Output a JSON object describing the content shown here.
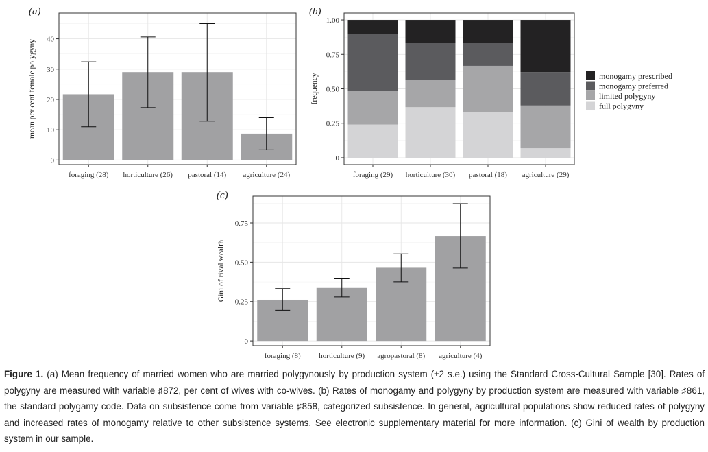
{
  "caption": {
    "label": "Figure 1.",
    "text": "(a) Mean frequency of married women who are married polygynously by production system (±2 s.e.) using the Standard Cross-Cultural Sample [30]. Rates of polygyny are measured with variable ♯872, per cent of wives with co-wives. (b) Rates of monogamy and polygyny by production system are measured with variable ♯861, the standard polygamy code. Data on subsistence come from variable ♯858, categorized subsistence. In general, agricultural populations show reduced rates of polygyny and increased rates of monogamy relative to other subsistence systems. See electronic supplementary material for more information. (c) Gini of wealth by production system in our sample."
  },
  "chart_data": [
    {
      "panel": "(a)",
      "type": "bar",
      "categories": [
        "foraging (28)",
        "horticulture (26)",
        "pastoral (14)",
        "agriculture (24)"
      ],
      "values": [
        21.7,
        29.0,
        29.0,
        8.7
      ],
      "error_low": [
        11.0,
        17.3,
        12.8,
        3.4
      ],
      "error_high": [
        32.4,
        40.6,
        45.0,
        14.0
      ],
      "ylabel": "mean per cent female polygyny",
      "ylim": [
        -1.5,
        48.5
      ],
      "yticks": [
        0,
        10,
        20,
        30,
        40
      ],
      "bar_color": "#a1a1a3",
      "grid": true
    },
    {
      "panel": "(b)",
      "type": "bar",
      "stacked": true,
      "categories": [
        "foraging (29)",
        "horticulture (30)",
        "pastoral (18)",
        "agriculture (29)"
      ],
      "ylabel": "frequency",
      "ylim": [
        -0.05,
        1.05
      ],
      "yticks": [
        0,
        0.25,
        0.5,
        0.75,
        1
      ],
      "ytick_labels": [
        "0",
        "0.25",
        "0.50",
        "0.75",
        "1.00"
      ],
      "legend": "right",
      "series": [
        {
          "name": "full polygyny",
          "color": "#d4d4d6",
          "values": [
            0.241,
            0.367,
            0.333,
            0.069
          ]
        },
        {
          "name": "limited polygyny",
          "color": "#a6a6a8",
          "values": [
            0.242,
            0.2,
            0.334,
            0.31
          ]
        },
        {
          "name": "monogamy preferred",
          "color": "#5b5b5e",
          "values": [
            0.414,
            0.266,
            0.166,
            0.242
          ]
        },
        {
          "name": "monogamy prescribed",
          "color": "#232223",
          "values": [
            0.103,
            0.167,
            0.167,
            0.379
          ]
        }
      ],
      "legend_order": [
        "monogamy prescribed",
        "monogamy preferred",
        "limited polygyny",
        "full polygyny"
      ],
      "grid": true
    },
    {
      "panel": "(c)",
      "type": "bar",
      "categories": [
        "foraging (8)",
        "horticulture (9)",
        "agropastoral (8)",
        "agriculture (4)"
      ],
      "values": [
        0.262,
        0.337,
        0.465,
        0.667
      ],
      "error_low": [
        0.195,
        0.28,
        0.376,
        0.463
      ],
      "error_high": [
        0.333,
        0.395,
        0.553,
        0.872
      ],
      "ylabel": "Gini of rival wealth",
      "ylim": [
        -0.03,
        0.92
      ],
      "yticks": [
        0,
        0.25,
        0.5,
        0.75
      ],
      "ytick_labels": [
        "0",
        "0.25",
        "0.50",
        "0.75"
      ],
      "bar_color": "#a1a1a3",
      "grid": true
    }
  ]
}
